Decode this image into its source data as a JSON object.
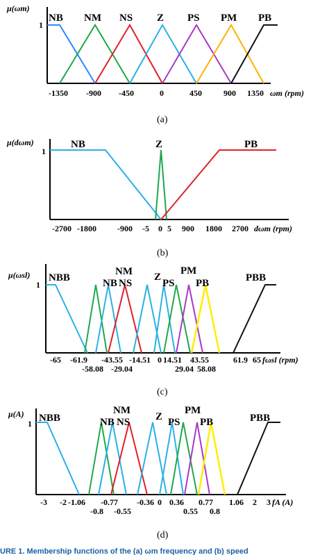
{
  "chart_data": [
    {
      "type": "line",
      "ylabel": "μ(ωm)",
      "xlabel": "ωm (rpm)",
      "caption": "(a)",
      "y_tick": "1",
      "ticks": [
        "-1350",
        "-900",
        "-450",
        "0",
        "450",
        "900",
        "1350"
      ],
      "series": [
        {
          "name": "NB",
          "color": "#2b88ff",
          "x": [
            -1400,
            -1350,
            -900
          ],
          "y": [
            1,
            1,
            0
          ]
        },
        {
          "name": "NM",
          "color": "#1ea84a",
          "x": [
            -1350,
            -900,
            -450
          ],
          "y": [
            0,
            1,
            0
          ]
        },
        {
          "name": "NS",
          "color": "#e0202a",
          "x": [
            -900,
            -450,
            0
          ],
          "y": [
            0,
            1,
            0
          ]
        },
        {
          "name": "Z",
          "color": "#29b0e8",
          "x": [
            -450,
            0,
            450
          ],
          "y": [
            0,
            1,
            0
          ]
        },
        {
          "name": "PS",
          "color": "#a838c8",
          "x": [
            0,
            450,
            900
          ],
          "y": [
            0,
            1,
            0
          ]
        },
        {
          "name": "PM",
          "color": "#ffb000",
          "x": [
            450,
            900,
            1350
          ],
          "y": [
            0,
            1,
            0
          ]
        },
        {
          "name": "PB",
          "color": "#111111",
          "x": [
            900,
            1350,
            1400
          ],
          "y": [
            0,
            1,
            1
          ]
        }
      ]
    },
    {
      "type": "line",
      "ylabel": "μ(dωm)",
      "xlabel": "dωm (rpm)",
      "caption": "(b)",
      "y_tick": "1",
      "ticks": [
        "-2700",
        "-1800",
        "-900",
        "-5",
        "0",
        "5",
        "900",
        "1800",
        "2700"
      ],
      "series": [
        {
          "name": "NB",
          "color": "#29b0e8",
          "x": [
            -2700,
            -1800,
            0
          ],
          "y": [
            1,
            1,
            0
          ]
        },
        {
          "name": "Z",
          "color": "#1ea84a",
          "x": [
            -5,
            0,
            5
          ],
          "y": [
            0,
            1,
            0
          ]
        },
        {
          "name": "PB",
          "color": "#e0202a",
          "x": [
            0,
            1800,
            2700
          ],
          "y": [
            0,
            1,
            1
          ]
        }
      ]
    },
    {
      "type": "line",
      "ylabel": "μ(ωsl)",
      "xlabel": "fωsl (rpm)",
      "caption": "(c)",
      "y_tick": "1",
      "ticks_top": [
        "-65",
        "-61.9",
        "-43.55",
        "-14.51",
        "0",
        "14.51",
        "43.55",
        "61.9",
        "65"
      ],
      "ticks_bottom": [
        "-58.08",
        "-29.04",
        "29.04",
        "58.08"
      ],
      "series": [
        {
          "name": "NBB",
          "color": "#29b0e8",
          "x": [
            -65,
            -61.9,
            -43.55
          ],
          "y": [
            1,
            1,
            0
          ]
        },
        {
          "name": "NB",
          "color": "#1ea84a",
          "x": [
            -43.55,
            -38,
            -29.04
          ],
          "y": [
            0,
            1,
            0
          ]
        },
        {
          "name": "NM",
          "color": "#29b0e8",
          "x": [
            -35,
            -29.04,
            -20
          ],
          "y": [
            0,
            1,
            0
          ]
        },
        {
          "name": "NS",
          "color": "#e0202a",
          "x": [
            -29.04,
            -14.51,
            0
          ],
          "y": [
            0,
            1,
            0
          ]
        },
        {
          "name": "Z",
          "color": "#29b0e8",
          "x": [
            -14.51,
            -7,
            0
          ],
          "y": [
            0,
            1,
            0
          ]
        },
        {
          "name": "PS",
          "color": "#29b0e8",
          "x": [
            0,
            7,
            14.51
          ],
          "y": [
            0,
            1,
            0
          ]
        },
        {
          "name": "PS",
          "color": "#1ea84a",
          "x": [
            7,
            14.51,
            29.04
          ],
          "y": [
            0,
            1,
            0
          ]
        },
        {
          "name": "PM",
          "color": "#a838c8",
          "x": [
            14.51,
            29.04,
            43.55
          ],
          "y": [
            0,
            1,
            0
          ]
        },
        {
          "name": "PB",
          "color": "#ffee00",
          "x": [
            29.04,
            43.55,
            58.08
          ],
          "y": [
            0,
            1,
            0
          ]
        },
        {
          "name": "PBB",
          "color": "#111111",
          "x": [
            61.9,
            65,
            67
          ],
          "y": [
            0,
            1,
            1
          ]
        }
      ]
    },
    {
      "type": "line",
      "ylabel": "μ(A)",
      "xlabel": "fA (A)",
      "caption": "(d)",
      "y_tick": "1",
      "ticks_top": [
        "-3",
        "-2",
        "-1.06",
        "-0.77",
        "-0.36",
        "0",
        "0.36",
        "0.77",
        "1.06",
        "2",
        "3"
      ],
      "ticks_bottom": [
        "-0.8",
        "-0.55",
        "0.55",
        "0.8"
      ],
      "series": [
        {
          "name": "NBB",
          "color": "#29b0e8",
          "x": [
            -3,
            -2.6,
            -1.06
          ],
          "y": [
            1,
            1,
            0
          ]
        },
        {
          "name": "NB",
          "color": "#1ea84a",
          "x": [
            -1.06,
            -0.85,
            -0.55
          ],
          "y": [
            0,
            1,
            0
          ]
        },
        {
          "name": "NM",
          "color": "#29b0e8",
          "x": [
            -0.9,
            -0.7,
            -0.36
          ],
          "y": [
            0,
            1,
            0
          ]
        },
        {
          "name": "NS",
          "color": "#e0202a",
          "x": [
            -0.77,
            -0.36,
            0
          ],
          "y": [
            0,
            1,
            0
          ]
        },
        {
          "name": "Z",
          "color": "#29b0e8",
          "x": [
            -0.36,
            -0.15,
            0
          ],
          "y": [
            0,
            1,
            0
          ]
        },
        {
          "name": "PS",
          "color": "#29b0e8",
          "x": [
            0,
            0.15,
            0.36
          ],
          "y": [
            0,
            1,
            0
          ]
        },
        {
          "name": "PS",
          "color": "#1ea84a",
          "x": [
            0.15,
            0.36,
            0.77
          ],
          "y": [
            0,
            1,
            0
          ]
        },
        {
          "name": "PM",
          "color": "#a838c8",
          "x": [
            0.36,
            0.77,
            1.06
          ],
          "y": [
            0,
            1,
            0
          ]
        },
        {
          "name": "PB",
          "color": "#ffee00",
          "x": [
            0.55,
            0.8,
            1.06
          ],
          "y": [
            0,
            1,
            0
          ]
        },
        {
          "name": "PBB",
          "color": "#111111",
          "x": [
            1.06,
            2,
            3
          ],
          "y": [
            0,
            1,
            1
          ]
        }
      ]
    }
  ],
  "footer_text": "URE 1. Membership functions of the (a) ωm frequency and (b) speed"
}
